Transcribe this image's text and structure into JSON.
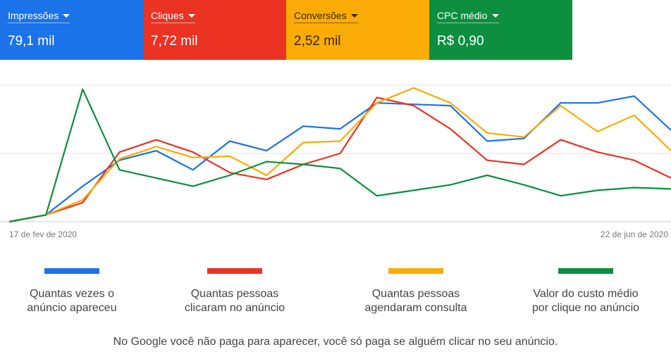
{
  "cards": [
    {
      "label": "Impressões",
      "value": "79,1 mil",
      "color": "#1a73e8"
    },
    {
      "label": "Cliques",
      "value": "7,72 mil",
      "color": "#ea3323"
    },
    {
      "label": "Conversões",
      "value": "2,52 mil",
      "color": "#fbab05"
    },
    {
      "label": "CPC médio",
      "value": "R$ 0,90",
      "color": "#0c8f3e"
    }
  ],
  "chart_data": {
    "type": "line",
    "x_start_label": "17 de fev de 2020",
    "x_end_label": "22 de jun de 2020",
    "grid": true,
    "ylim": [
      0,
      100
    ],
    "series": [
      {
        "color": "#1a73e8",
        "values": [
          0,
          5,
          26,
          45,
          52,
          38,
          59,
          52,
          70,
          68,
          87,
          86,
          85,
          59,
          61,
          87,
          87,
          92,
          67
        ]
      },
      {
        "color": "#ea3323",
        "values": [
          0,
          5,
          14,
          51,
          60,
          51,
          36,
          31,
          42,
          50,
          91,
          85,
          68,
          45,
          42,
          60,
          51,
          45,
          32
        ]
      },
      {
        "color": "#fbab05",
        "values": [
          0,
          5,
          16,
          46,
          55,
          47,
          48,
          34,
          58,
          59,
          87,
          98,
          87,
          65,
          62,
          85,
          66,
          78,
          52
        ]
      },
      {
        "color": "#0c8f3e",
        "values": [
          0,
          5,
          97,
          38,
          32,
          26,
          34,
          44,
          42,
          39,
          19,
          23,
          27,
          34,
          27,
          19,
          23,
          25,
          24
        ]
      }
    ]
  },
  "legend": [
    {
      "color": "#1a73e8",
      "text": "Quantas vezes o\nanúncio apareceu"
    },
    {
      "color": "#ea3323",
      "text": "Quantas pessoas\nclicaram no anúncio"
    },
    {
      "color": "#fbab05",
      "text": "Quantas pessoas\nagendaram consulta"
    },
    {
      "color": "#0c8f3e",
      "text": "Valor do custo médio\npor clique no anúncio"
    }
  ],
  "footer": "No Google você não paga para aparecer, você só paga se alguém clicar no seu anúncio."
}
